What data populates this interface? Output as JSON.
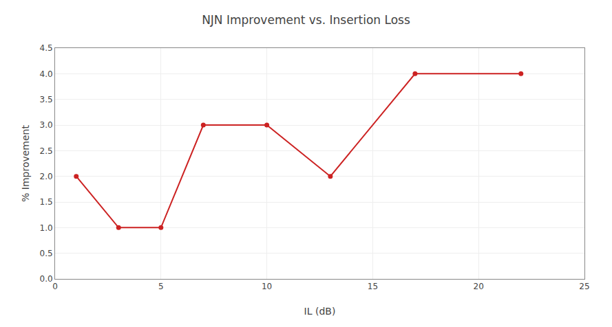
{
  "chart_data": {
    "type": "line",
    "title": "NJN Improvement vs. Insertion Loss",
    "xlabel": "IL (dB)",
    "ylabel": "% Improvement",
    "x": [
      1,
      3,
      5,
      7,
      10,
      13,
      17,
      22
    ],
    "values": [
      2.0,
      1.0,
      1.0,
      3.0,
      3.0,
      2.0,
      4.0,
      4.0
    ],
    "color": "#cc2222",
    "marker": "circle",
    "xlim": [
      0,
      25
    ],
    "ylim": [
      0.0,
      4.5
    ],
    "xticks": [
      0,
      5,
      10,
      15,
      20,
      25
    ],
    "yticks": [
      {
        "value": 0.0,
        "label": "0.0"
      },
      0.5,
      {
        "value": 1.0,
        "label": "1.0"
      },
      1.5,
      {
        "value": 2.0,
        "label": "2.0"
      },
      2.5,
      {
        "value": 3.0,
        "label": "3.0"
      },
      3.5,
      {
        "value": 4.0,
        "label": "4.0"
      },
      4.5
    ],
    "grid": true
  }
}
